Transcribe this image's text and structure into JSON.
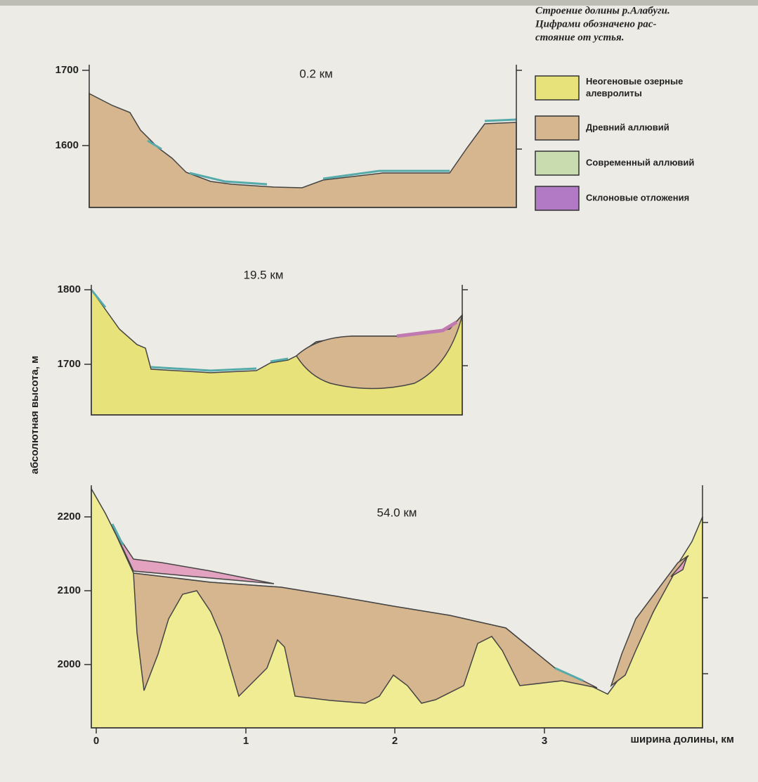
{
  "caption": [
    "Строение долины р.Алабуги.",
    "Цифрами обозначено рас-",
    "стояние от устья."
  ],
  "legend": [
    {
      "label": [
        "Неогеновые озерные",
        "алевролиты"
      ]
    },
    {
      "label": [
        "Древний аллювий"
      ]
    },
    {
      "label": [
        "Современный аллювий"
      ]
    },
    {
      "label": [
        "Склоновые отложения"
      ]
    }
  ],
  "y_axis_label": "абсолютная высота, м",
  "x_axis_label": "ширина долины, км",
  "x_ticks": [
    "0",
    "1",
    "2",
    "3"
  ],
  "panels": [
    {
      "label": "0.2 км",
      "yticks": [
        "1700",
        "1600"
      ]
    },
    {
      "label": "19.5 км",
      "yticks": [
        "1800",
        "1700"
      ]
    },
    {
      "label": "54.0 км",
      "yticks": [
        "2200",
        "2100",
        "2000"
      ]
    }
  ]
}
